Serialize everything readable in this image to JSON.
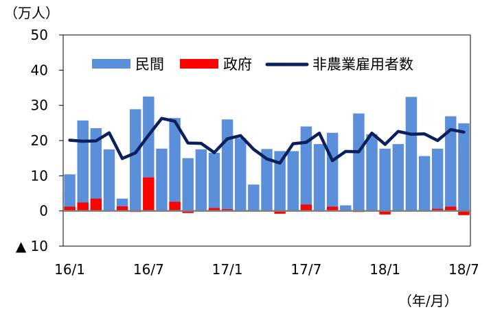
{
  "chart_data": {
    "type": "bar",
    "y_unit_label": "（万人）",
    "x_unit_label": "（年/月）",
    "ylim": [
      -10,
      50
    ],
    "y_ticks": [
      {
        "value": 50,
        "label": "50"
      },
      {
        "value": 40,
        "label": "40"
      },
      {
        "value": 30,
        "label": "30"
      },
      {
        "value": 20,
        "label": "20"
      },
      {
        "value": 10,
        "label": "10"
      },
      {
        "value": 0,
        "label": "0"
      },
      {
        "value": -10,
        "label": "▲ 10"
      }
    ],
    "x_tick_labels": [
      {
        "index": 0,
        "label": "16/1"
      },
      {
        "index": 6,
        "label": "16/7"
      },
      {
        "index": 12,
        "label": "17/1"
      },
      {
        "index": 18,
        "label": "17/7"
      },
      {
        "index": 24,
        "label": "18/1"
      },
      {
        "index": 30,
        "label": "18/7"
      }
    ],
    "categories": [
      "16/1",
      "16/2",
      "16/3",
      "16/4",
      "16/5",
      "16/6",
      "16/7",
      "16/8",
      "16/9",
      "16/10",
      "16/11",
      "16/12",
      "17/1",
      "17/2",
      "17/3",
      "17/4",
      "17/5",
      "17/6",
      "17/7",
      "17/8",
      "17/9",
      "17/10",
      "17/11",
      "17/12",
      "18/1",
      "18/2",
      "18/3",
      "18/4",
      "18/5",
      "18/6",
      "18/7"
    ],
    "series": [
      {
        "name": "民間",
        "kind": "bar",
        "color": "#5B8FDA",
        "values": [
          10.4,
          25.7,
          23.5,
          17.5,
          3.5,
          28.9,
          32.5,
          17.7,
          26.4,
          15.0,
          17.5,
          16.5,
          26.0,
          20.7,
          7.5,
          17.6,
          17.0,
          17.0,
          24.0,
          19.0,
          22.2,
          1.6,
          27.7,
          21.8,
          17.7,
          19.0,
          32.4,
          15.6,
          17.7,
          26.9,
          24.9
        ]
      },
      {
        "name": "政府",
        "kind": "bar",
        "color": "#FF0000",
        "values": [
          1.2,
          2.4,
          3.5,
          0.0,
          1.3,
          -0.3,
          9.5,
          0.0,
          2.6,
          -0.6,
          0.0,
          0.8,
          0.5,
          -0.2,
          0.0,
          0.0,
          -0.8,
          0.0,
          1.8,
          0.0,
          1.2,
          0.0,
          -0.3,
          0.0,
          -1.0,
          0.0,
          0.0,
          0.0,
          0.6,
          1.2,
          -1.2
        ]
      },
      {
        "name": "非農業雇用者数",
        "kind": "line",
        "color": "#0B1F5C",
        "values": [
          20.1,
          19.8,
          19.9,
          22.2,
          14.9,
          16.5,
          21.5,
          26.3,
          25.5,
          19.3,
          19.2,
          16.6,
          20.5,
          21.4,
          17.5,
          14.8,
          13.6,
          19.1,
          19.5,
          22.1,
          14.3,
          16.9,
          16.8,
          22.1,
          18.9,
          22.6,
          21.8,
          21.9,
          20.0,
          23.1,
          22.4
        ]
      }
    ],
    "legend_position": "top-center",
    "grid": false
  }
}
